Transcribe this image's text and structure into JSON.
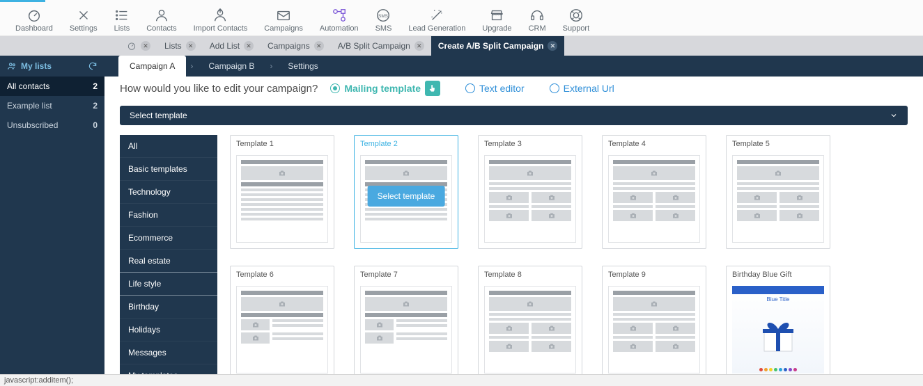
{
  "topnav": [
    {
      "label": "Dashboard",
      "icon": "gauge"
    },
    {
      "label": "Settings",
      "icon": "tools"
    },
    {
      "label": "Lists",
      "icon": "list"
    },
    {
      "label": "Contacts",
      "icon": "person"
    },
    {
      "label": "Import Contacts",
      "icon": "import"
    },
    {
      "label": "Campaigns",
      "icon": "mail"
    },
    {
      "label": "Automation",
      "icon": "flow",
      "accent": true
    },
    {
      "label": "SMS",
      "icon": "sms"
    },
    {
      "label": "Lead Generation",
      "icon": "wand"
    },
    {
      "label": "Upgrade",
      "icon": "store"
    },
    {
      "label": "CRM",
      "icon": "headset"
    },
    {
      "label": "Support",
      "icon": "lifebuoy"
    }
  ],
  "tabs": [
    {
      "label": "",
      "home": true
    },
    {
      "label": "Lists"
    },
    {
      "label": "Add List"
    },
    {
      "label": "Campaigns"
    },
    {
      "label": "A/B Split Campaign"
    },
    {
      "label": "Create A/B Split Campaign",
      "active": true
    }
  ],
  "sidebar": {
    "title": "My lists",
    "items": [
      {
        "label": "All contacts",
        "count": "2",
        "active": true
      },
      {
        "label": "Example list",
        "count": "2"
      },
      {
        "label": "Unsubscribed",
        "count": "0"
      }
    ]
  },
  "steps": [
    {
      "label": "Campaign A",
      "current": true
    },
    {
      "label": "Campaign B"
    },
    {
      "label": "Settings"
    }
  ],
  "question": "How would you like to edit your campaign?",
  "editOptions": [
    {
      "label": "Mailing template",
      "selected": true,
      "style": "green"
    },
    {
      "label": "Text editor",
      "style": "blue"
    },
    {
      "label": "External Url",
      "style": "blue"
    }
  ],
  "selectTemplateBar": "Select template",
  "categories": [
    "All",
    "Basic templates",
    "Technology",
    "Fashion",
    "Ecommerce",
    "Real estate",
    "Life style",
    "Birthday",
    "Holidays",
    "Messages",
    "My templates"
  ],
  "categorySeps": [
    5,
    6
  ],
  "templates": [
    {
      "title": "Template 1",
      "layout": "lines"
    },
    {
      "title": "Template 2",
      "layout": "lines",
      "hover": true,
      "selectLabel": "Select template"
    },
    {
      "title": "Template 3",
      "layout": "grid"
    },
    {
      "title": "Template 4",
      "layout": "grid"
    },
    {
      "title": "Template 5",
      "layout": "grid"
    },
    {
      "title": "Template 6",
      "layout": "sidebar"
    },
    {
      "title": "Template 7",
      "layout": "sidebar"
    },
    {
      "title": "Template 8",
      "layout": "grid"
    },
    {
      "title": "Template 9",
      "layout": "grid"
    },
    {
      "title": "Birthday Blue Gift",
      "layout": "gift",
      "giftTitle": "Blue Title",
      "dotColors": [
        "#e24a3b",
        "#f0a030",
        "#f4d223",
        "#46c36b",
        "#29a3dd",
        "#2a60c8",
        "#8648c9",
        "#c83a8a"
      ]
    }
  ],
  "status": "javascript:additem();",
  "colors": {
    "navBlue": "#20374e",
    "accentPurple": "#7e5bd8",
    "teal": "#3fb7b0",
    "linkBlue": "#2f8fd8",
    "btnBlue": "#4aa9e0",
    "lightBar": "#d7d8dc"
  }
}
